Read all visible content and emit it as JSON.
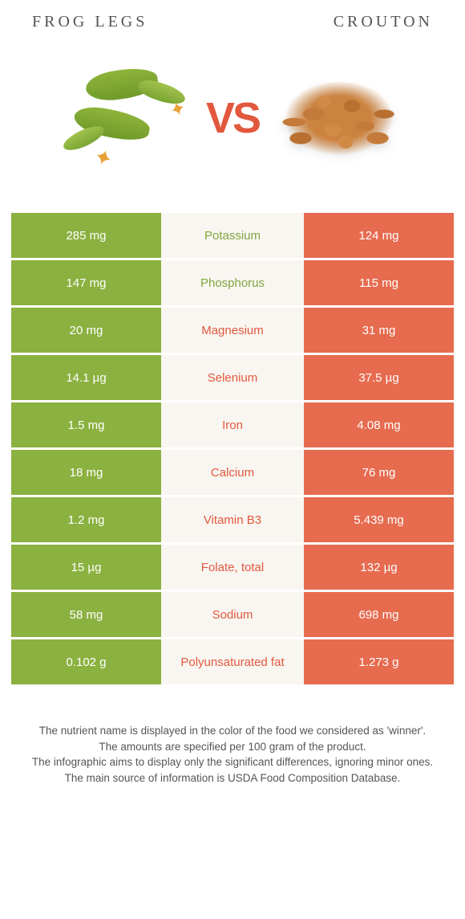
{
  "colors": {
    "green": "#8bb140",
    "orange": "#e66b4f",
    "mid_bg": "#f9f6f1",
    "text_green": "#7ea53f",
    "text_orange": "#e2583e"
  },
  "left_food": {
    "title": "Frog legs"
  },
  "right_food": {
    "title": "Crouton"
  },
  "vs_label": "VS",
  "rows": [
    {
      "nutrient": "Potassium",
      "left": "285 mg",
      "right": "124 mg",
      "winner": "left"
    },
    {
      "nutrient": "Phosphorus",
      "left": "147 mg",
      "right": "115 mg",
      "winner": "left"
    },
    {
      "nutrient": "Magnesium",
      "left": "20 mg",
      "right": "31 mg",
      "winner": "right"
    },
    {
      "nutrient": "Selenium",
      "left": "14.1 µg",
      "right": "37.5 µg",
      "winner": "right"
    },
    {
      "nutrient": "Iron",
      "left": "1.5 mg",
      "right": "4.08 mg",
      "winner": "right"
    },
    {
      "nutrient": "Calcium",
      "left": "18 mg",
      "right": "76 mg",
      "winner": "right"
    },
    {
      "nutrient": "Vitamin B3",
      "left": "1.2 mg",
      "right": "5.439 mg",
      "winner": "right"
    },
    {
      "nutrient": "Folate, total",
      "left": "15 µg",
      "right": "132 µg",
      "winner": "right"
    },
    {
      "nutrient": "Sodium",
      "left": "58 mg",
      "right": "698 mg",
      "winner": "right"
    },
    {
      "nutrient": "Polyunsaturated fat",
      "left": "0.102 g",
      "right": "1.273 g",
      "winner": "right"
    }
  ],
  "footnote": [
    "The nutrient name is displayed in the color of the food we considered as 'winner'.",
    "The amounts are specified per 100 gram of the product.",
    "The infographic aims to display only the significant differences, ignoring minor ones.",
    "The main source of information is USDA Food Composition Database."
  ]
}
